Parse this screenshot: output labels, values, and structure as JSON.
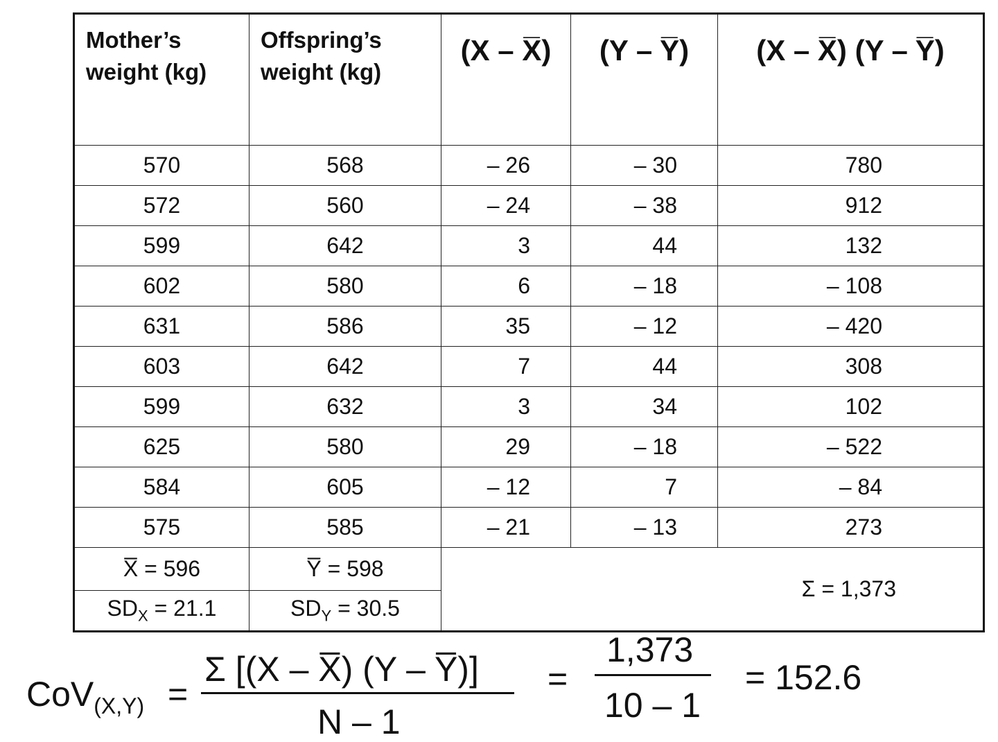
{
  "table": {
    "header": [
      "Mother’s weight (kg)",
      "Offspring’s weight (kg)",
      "(X – X̅)",
      "(Y – Y̅)",
      "(X – X̅) (Y – Y̅)"
    ],
    "rows": [
      [
        "570",
        "568",
        "– 26",
        "– 30",
        "780"
      ],
      [
        "572",
        "560",
        "– 24",
        "– 38",
        "912"
      ],
      [
        "599",
        "642",
        "3",
        "44",
        "132"
      ],
      [
        "602",
        "580",
        "6",
        "– 18",
        "– 108"
      ],
      [
        "631",
        "586",
        "35",
        "– 12",
        "– 420"
      ],
      [
        "603",
        "642",
        "7",
        "44",
        "308"
      ],
      [
        "599",
        "632",
        "3",
        "34",
        "102"
      ],
      [
        "625",
        "580",
        "29",
        "– 18",
        "– 522"
      ],
      [
        "584",
        "605",
        "– 12",
        "7",
        "– 84"
      ],
      [
        "575",
        "585",
        "– 21",
        "– 13",
        "273"
      ]
    ],
    "mean_x": "X̅ = 596",
    "mean_y": "Y̅ = 598",
    "sd_x": {
      "label": "SD",
      "sub": "X",
      "rest": " = 21.1"
    },
    "sd_y": {
      "label": "SD",
      "sub": "Y",
      "rest": " = 30.5"
    },
    "sum": "Σ  =  1,373"
  },
  "formula": {
    "lhs": "CoV",
    "lhs_sub": "(X,Y)",
    "eq1": "=",
    "numerator": "Σ [(X – X̅)  (Y – Y̅)]",
    "denominator": "N – 1",
    "eq2": "=",
    "numerator2": "1,373",
    "denominator2": "10 – 1",
    "result": "= 152.6"
  }
}
